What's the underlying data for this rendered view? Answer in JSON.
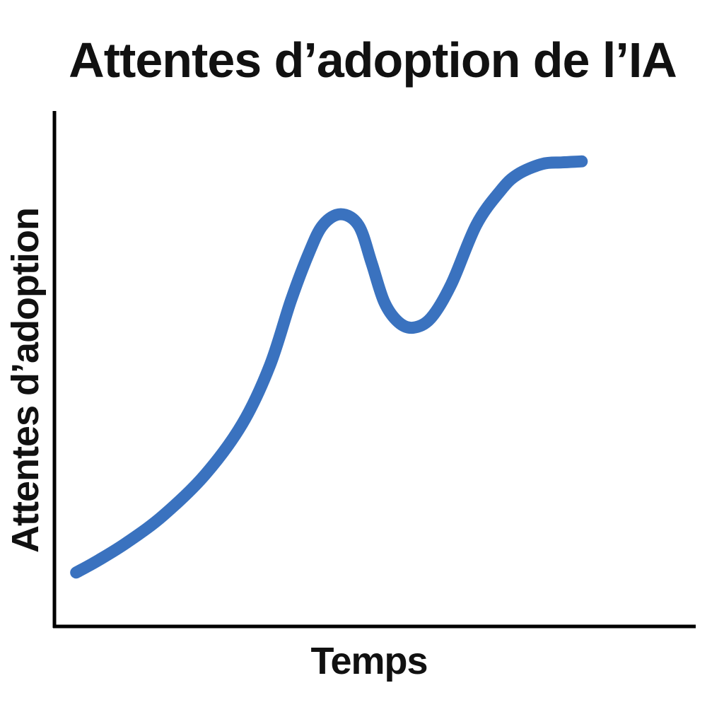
{
  "chart_data": {
    "type": "line",
    "title": "Attentes d’adoption de l’IA",
    "xlabel": "Temps",
    "ylabel": "Attentes d’adoption",
    "xlim": [
      0,
      100
    ],
    "ylim": [
      0,
      100
    ],
    "grid": false,
    "x_ticks_shown": false,
    "y_ticks_shown": false,
    "series": [
      {
        "color": "#3A72BF",
        "x": [
          3.4,
          6.9,
          11.4,
          17.0,
          23.6,
          29.4,
          33.7,
          37.0,
          39.8,
          42.0,
          44.8,
          47.6,
          49.6,
          51.6,
          53.8,
          56.1,
          58.9,
          62.1,
          66.0,
          69.8,
          72.4,
          76.3,
          79.4,
          82.5
        ],
        "y": [
          10.5,
          12.9,
          16.4,
          21.6,
          29.6,
          39.5,
          50.8,
          63.5,
          72.7,
          78.2,
          80.3,
          78.1,
          70.9,
          63.2,
          59.3,
          58.2,
          60.1,
          66.7,
          78.2,
          84.9,
          88.0,
          90.1,
          90.4,
          90.6
        ]
      }
    ]
  },
  "colors": {
    "series": "#3A72BF",
    "axis": "#000000",
    "text": "#111111",
    "background": "#ffffff"
  }
}
